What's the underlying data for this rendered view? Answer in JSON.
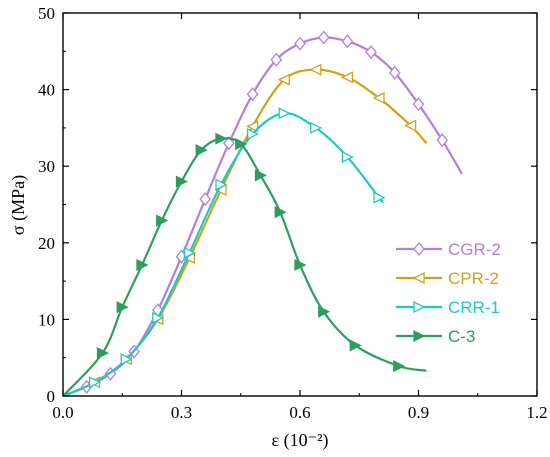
{
  "chart_data": {
    "type": "line",
    "title": "",
    "xlabel": "ε (10⁻²)",
    "ylabel": "σ (MPa)",
    "xlim": [
      0,
      1.2
    ],
    "ylim": [
      0,
      50
    ],
    "xticks": [
      0.0,
      0.3,
      0.6,
      0.9,
      1.2
    ],
    "xtick_labels": [
      "0.0",
      "0.3",
      "0.6",
      "0.9",
      "1.2"
    ],
    "yticks": [
      0,
      10,
      20,
      30,
      40,
      50
    ],
    "ytick_labels": [
      "0",
      "10",
      "20",
      "30",
      "40",
      "50"
    ],
    "grid": false,
    "legend_position": "right",
    "series": [
      {
        "name": "CGR-2",
        "color": "#b07fe0",
        "marker": "diamond",
        "x": [
          0.0,
          0.06,
          0.12,
          0.18,
          0.24,
          0.3,
          0.36,
          0.42,
          0.48,
          0.54,
          0.6,
          0.66,
          0.72,
          0.78,
          0.84,
          0.9,
          0.96,
          1.01
        ],
        "y": [
          0.0,
          1.2,
          2.9,
          5.8,
          11.2,
          18.2,
          25.7,
          33.0,
          39.4,
          43.9,
          46.0,
          46.8,
          46.3,
          44.9,
          42.2,
          38.1,
          33.4,
          29.0
        ]
      },
      {
        "name": "CPR-2",
        "color": "#d4a017",
        "marker": "triangle-left",
        "x": [
          0.0,
          0.08,
          0.16,
          0.24,
          0.32,
          0.4,
          0.48,
          0.56,
          0.64,
          0.72,
          0.8,
          0.88,
          0.92
        ],
        "y": [
          0.0,
          1.8,
          4.8,
          10.0,
          18.0,
          26.9,
          35.2,
          41.3,
          42.6,
          41.6,
          38.9,
          35.3,
          33.0
        ]
      },
      {
        "name": "CRR-1",
        "color": "#1fc8c8",
        "marker": "triangle-right",
        "x": [
          0.0,
          0.08,
          0.16,
          0.24,
          0.32,
          0.4,
          0.48,
          0.56,
          0.64,
          0.72,
          0.8,
          0.81
        ],
        "y": [
          0.0,
          1.8,
          4.8,
          10.2,
          18.7,
          27.6,
          34.2,
          36.9,
          35.0,
          31.2,
          25.9,
          25.4
        ]
      },
      {
        "name": "C-3",
        "color": "#2e9e5e",
        "marker": "triangle-right-filled",
        "x": [
          0.0,
          0.1,
          0.15,
          0.2,
          0.25,
          0.3,
          0.35,
          0.4,
          0.45,
          0.5,
          0.55,
          0.6,
          0.66,
          0.74,
          0.85,
          0.92
        ],
        "y": [
          0.0,
          5.6,
          11.6,
          17.1,
          22.9,
          28.0,
          32.1,
          33.6,
          32.9,
          28.8,
          24.0,
          17.1,
          11.0,
          6.6,
          3.9,
          3.3
        ]
      }
    ]
  }
}
